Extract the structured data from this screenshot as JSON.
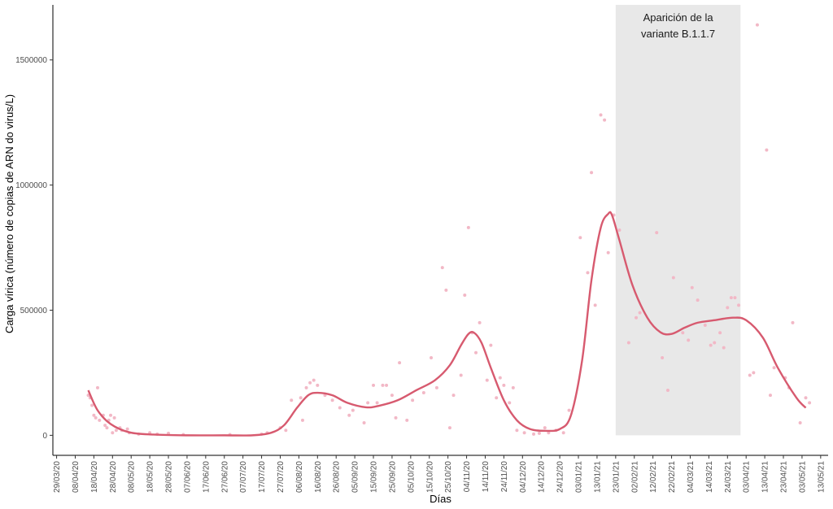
{
  "chart_data": {
    "type": "scatter",
    "xlabel": "Días",
    "ylabel": "Carga vírica (número de copias de ARN do virus/L)",
    "ylim": [
      -80000,
      1720000
    ],
    "yticks": [
      0,
      500000,
      1000000,
      1500000
    ],
    "ytick_labels": [
      "0",
      "500000",
      "1000000",
      "1500000"
    ],
    "xlim": [
      "2020-03-27",
      "2021-05-17"
    ],
    "xticks": [
      "2020-03-29",
      "2020-04-08",
      "2020-04-18",
      "2020-04-28",
      "2020-05-08",
      "2020-05-18",
      "2020-05-28",
      "2020-06-07",
      "2020-06-17",
      "2020-06-27",
      "2020-07-07",
      "2020-07-17",
      "2020-07-27",
      "2020-08-06",
      "2020-08-16",
      "2020-08-26",
      "2020-09-05",
      "2020-09-15",
      "2020-09-25",
      "2020-10-05",
      "2020-10-15",
      "2020-10-25",
      "2020-11-04",
      "2020-11-14",
      "2020-11-24",
      "2020-12-04",
      "2020-12-14",
      "2020-12-24",
      "2021-01-03",
      "2021-01-13",
      "2021-01-23",
      "2021-02-02",
      "2021-02-12",
      "2021-02-22",
      "2021-03-04",
      "2021-03-14",
      "2021-03-24",
      "2021-04-03",
      "2021-04-13",
      "2021-04-23",
      "2021-05-03",
      "2021-05-13"
    ],
    "xtick_labels": [
      "29/03/20",
      "08/04/20",
      "18/04/20",
      "28/04/20",
      "08/05/20",
      "18/05/20",
      "28/05/20",
      "07/06/20",
      "17/06/20",
      "27/06/20",
      "07/07/20",
      "17/07/20",
      "27/07/20",
      "06/08/20",
      "16/08/20",
      "26/08/20",
      "05/09/20",
      "15/09/20",
      "25/09/20",
      "05/10/20",
      "15/10/20",
      "25/10/20",
      "04/11/20",
      "14/11/20",
      "24/11/20",
      "04/12/20",
      "14/12/20",
      "24/12/20",
      "03/01/21",
      "13/01/21",
      "23/01/21",
      "02/02/21",
      "12/02/21",
      "22/02/21",
      "04/03/21",
      "14/03/21",
      "24/03/21",
      "03/04/21",
      "13/04/21",
      "23/04/21",
      "03/05/21",
      "13/05/21"
    ],
    "grid": false,
    "annotation": {
      "lines": [
        "Aparición de la",
        "variante B.1.1.7"
      ],
      "span": [
        "2021-01-23",
        "2021-03-31"
      ],
      "color": "#e8e8e8"
    },
    "series": [
      {
        "kind": "points",
        "color": "#f2b8c6",
        "points": [
          [
            "2020-04-15",
            160000
          ],
          [
            "2020-04-16",
            150000
          ],
          [
            "2020-04-17",
            120000
          ],
          [
            "2020-04-18",
            80000
          ],
          [
            "2020-04-19",
            70000
          ],
          [
            "2020-04-20",
            190000
          ],
          [
            "2020-04-21",
            60000
          ],
          [
            "2020-04-23",
            80000
          ],
          [
            "2020-04-24",
            40000
          ],
          [
            "2020-04-25",
            30000
          ],
          [
            "2020-04-26",
            60000
          ],
          [
            "2020-04-27",
            80000
          ],
          [
            "2020-04-28",
            10000
          ],
          [
            "2020-04-29",
            70000
          ],
          [
            "2020-04-30",
            20000
          ],
          [
            "2020-05-02",
            30000
          ],
          [
            "2020-05-03",
            20000
          ],
          [
            "2020-05-06",
            25000
          ],
          [
            "2020-05-07",
            10000
          ],
          [
            "2020-05-12",
            5000
          ],
          [
            "2020-05-18",
            10000
          ],
          [
            "2020-05-22",
            5000
          ],
          [
            "2020-05-28",
            8000
          ],
          [
            "2020-06-05",
            3000
          ],
          [
            "2020-06-30",
            3000
          ],
          [
            "2020-07-17",
            5000
          ],
          [
            "2020-07-20",
            10000
          ],
          [
            "2020-07-27",
            30000
          ],
          [
            "2020-07-30",
            20000
          ],
          [
            "2020-08-02",
            140000
          ],
          [
            "2020-08-07",
            150000
          ],
          [
            "2020-08-08",
            60000
          ],
          [
            "2020-08-10",
            190000
          ],
          [
            "2020-08-12",
            210000
          ],
          [
            "2020-08-14",
            220000
          ],
          [
            "2020-08-16",
            200000
          ],
          [
            "2020-08-20",
            160000
          ],
          [
            "2020-08-24",
            140000
          ],
          [
            "2020-08-28",
            110000
          ],
          [
            "2020-09-02",
            80000
          ],
          [
            "2020-09-04",
            100000
          ],
          [
            "2020-09-10",
            50000
          ],
          [
            "2020-09-12",
            130000
          ],
          [
            "2020-09-15",
            200000
          ],
          [
            "2020-09-17",
            130000
          ],
          [
            "2020-09-20",
            200000
          ],
          [
            "2020-09-22",
            200000
          ],
          [
            "2020-09-25",
            160000
          ],
          [
            "2020-09-27",
            70000
          ],
          [
            "2020-09-29",
            290000
          ],
          [
            "2020-10-03",
            60000
          ],
          [
            "2020-10-06",
            140000
          ],
          [
            "2020-10-12",
            170000
          ],
          [
            "2020-10-16",
            310000
          ],
          [
            "2020-10-19",
            190000
          ],
          [
            "2020-10-22",
            670000
          ],
          [
            "2020-10-24",
            580000
          ],
          [
            "2020-10-26",
            30000
          ],
          [
            "2020-10-28",
            160000
          ],
          [
            "2020-11-01",
            240000
          ],
          [
            "2020-11-03",
            560000
          ],
          [
            "2020-11-05",
            830000
          ],
          [
            "2020-11-07",
            410000
          ],
          [
            "2020-11-09",
            330000
          ],
          [
            "2020-11-11",
            450000
          ],
          [
            "2020-11-15",
            220000
          ],
          [
            "2020-11-17",
            360000
          ],
          [
            "2020-11-20",
            150000
          ],
          [
            "2020-11-22",
            230000
          ],
          [
            "2020-11-24",
            200000
          ],
          [
            "2020-11-27",
            130000
          ],
          [
            "2020-11-29",
            190000
          ],
          [
            "2020-12-01",
            20000
          ],
          [
            "2020-12-05",
            10000
          ],
          [
            "2020-12-10",
            5000
          ],
          [
            "2020-12-13",
            8000
          ],
          [
            "2020-12-16",
            30000
          ],
          [
            "2020-12-18",
            10000
          ],
          [
            "2020-12-22",
            20000
          ],
          [
            "2020-12-26",
            10000
          ],
          [
            "2020-12-29",
            100000
          ],
          [
            "2021-01-04",
            790000
          ],
          [
            "2021-01-08",
            650000
          ],
          [
            "2021-01-10",
            1050000
          ],
          [
            "2021-01-12",
            520000
          ],
          [
            "2021-01-15",
            1280000
          ],
          [
            "2021-01-17",
            1260000
          ],
          [
            "2021-01-19",
            730000
          ],
          [
            "2021-01-22",
            880000
          ],
          [
            "2021-01-25",
            820000
          ],
          [
            "2021-01-30",
            370000
          ],
          [
            "2021-02-03",
            470000
          ],
          [
            "2021-02-05",
            490000
          ],
          [
            "2021-02-14",
            810000
          ],
          [
            "2021-02-17",
            310000
          ],
          [
            "2021-02-20",
            180000
          ],
          [
            "2021-02-23",
            630000
          ],
          [
            "2021-02-28",
            410000
          ],
          [
            "2021-03-03",
            380000
          ],
          [
            "2021-03-05",
            590000
          ],
          [
            "2021-03-08",
            540000
          ],
          [
            "2021-03-12",
            440000
          ],
          [
            "2021-03-15",
            360000
          ],
          [
            "2021-03-17",
            370000
          ],
          [
            "2021-03-20",
            410000
          ],
          [
            "2021-03-22",
            350000
          ],
          [
            "2021-03-24",
            510000
          ],
          [
            "2021-03-26",
            550000
          ],
          [
            "2021-03-28",
            550000
          ],
          [
            "2021-03-30",
            520000
          ],
          [
            "2021-04-05",
            240000
          ],
          [
            "2021-04-07",
            250000
          ],
          [
            "2021-04-09",
            1640000
          ],
          [
            "2021-04-14",
            1140000
          ],
          [
            "2021-04-16",
            160000
          ],
          [
            "2021-04-18",
            270000
          ],
          [
            "2021-04-24",
            230000
          ],
          [
            "2021-04-26",
            190000
          ],
          [
            "2021-04-28",
            450000
          ],
          [
            "2021-05-02",
            50000
          ],
          [
            "2021-05-05",
            150000
          ],
          [
            "2021-05-07",
            130000
          ]
        ]
      },
      {
        "kind": "smooth",
        "color": "#d75a6f",
        "points": [
          [
            "2020-04-15",
            180000
          ],
          [
            "2020-04-20",
            100000
          ],
          [
            "2020-04-27",
            45000
          ],
          [
            "2020-05-07",
            12000
          ],
          [
            "2020-05-20",
            3000
          ],
          [
            "2020-06-07",
            0
          ],
          [
            "2020-06-27",
            0
          ],
          [
            "2020-07-12",
            0
          ],
          [
            "2020-07-22",
            10000
          ],
          [
            "2020-07-29",
            40000
          ],
          [
            "2020-08-05",
            110000
          ],
          [
            "2020-08-11",
            160000
          ],
          [
            "2020-08-16",
            170000
          ],
          [
            "2020-08-24",
            160000
          ],
          [
            "2020-09-01",
            130000
          ],
          [
            "2020-09-11",
            112000
          ],
          [
            "2020-09-18",
            118000
          ],
          [
            "2020-09-28",
            140000
          ],
          [
            "2020-10-08",
            180000
          ],
          [
            "2020-10-18",
            220000
          ],
          [
            "2020-10-26",
            280000
          ],
          [
            "2020-11-01",
            360000
          ],
          [
            "2020-11-05",
            405000
          ],
          [
            "2020-11-08",
            410000
          ],
          [
            "2020-11-12",
            370000
          ],
          [
            "2020-11-17",
            270000
          ],
          [
            "2020-11-24",
            140000
          ],
          [
            "2020-12-01",
            60000
          ],
          [
            "2020-12-08",
            25000
          ],
          [
            "2020-12-16",
            18000
          ],
          [
            "2020-12-24",
            25000
          ],
          [
            "2020-12-30",
            80000
          ],
          [
            "2021-01-05",
            300000
          ],
          [
            "2021-01-10",
            620000
          ],
          [
            "2021-01-15",
            830000
          ],
          [
            "2021-01-19",
            885000
          ],
          [
            "2021-01-21",
            880000
          ],
          [
            "2021-01-25",
            780000
          ],
          [
            "2021-02-01",
            600000
          ],
          [
            "2021-02-09",
            470000
          ],
          [
            "2021-02-16",
            412000
          ],
          [
            "2021-02-22",
            405000
          ],
          [
            "2021-03-01",
            430000
          ],
          [
            "2021-03-08",
            450000
          ],
          [
            "2021-03-17",
            460000
          ],
          [
            "2021-03-27",
            470000
          ],
          [
            "2021-04-03",
            460000
          ],
          [
            "2021-04-12",
            390000
          ],
          [
            "2021-04-20",
            270000
          ],
          [
            "2021-04-30",
            150000
          ],
          [
            "2021-05-05",
            110000
          ]
        ]
      }
    ]
  }
}
